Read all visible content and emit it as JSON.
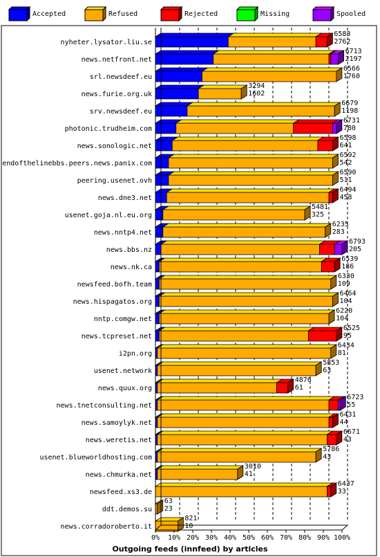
{
  "chart_data": {
    "type": "bar",
    "orientation": "horizontal",
    "stacked": true,
    "percent_scale": true,
    "title": "Outgoing feeds (innfeed) by articles",
    "legend_position": "top",
    "xlim": [
      0,
      100
    ],
    "x_ticks": [
      "0%",
      "10%",
      "20%",
      "30%",
      "40%",
      "50%",
      "60%",
      "70%",
      "80%",
      "90%",
      "100%"
    ],
    "grid": true,
    "series": [
      {
        "name": "Accepted",
        "color": "#0000ff"
      },
      {
        "name": "Refused",
        "color": "#ffaa00"
      },
      {
        "name": "Rejected",
        "color": "#ff0000"
      },
      {
        "name": "Missing",
        "color": "#00ff00"
      },
      {
        "name": "Spooled",
        "color": "#9900ff"
      }
    ],
    "rows": [
      {
        "label": "nyheter.lysator.liu.se",
        "total": "6583",
        "accepted": "2762",
        "seg": [
          39,
          47,
          6,
          0,
          0
        ]
      },
      {
        "label": "news.netfront.net",
        "total": "6713",
        "accepted": "2197",
        "seg": [
          31,
          62,
          1,
          0,
          4
        ]
      },
      {
        "label": "srl.newsdeef.eu",
        "total": "6566",
        "accepted": "1760",
        "seg": [
          25,
          72,
          0,
          0,
          0
        ]
      },
      {
        "label": "news.furie.org.uk",
        "total": "3294",
        "accepted": "1602",
        "seg": [
          23,
          23,
          0,
          0,
          0
        ]
      },
      {
        "label": "srv.newsdeef.eu",
        "total": "6679",
        "accepted": "1198",
        "seg": [
          17,
          79,
          0,
          0,
          0
        ]
      },
      {
        "label": "photonic.trudheim.com",
        "total": "6731",
        "accepted": "780",
        "seg": [
          11,
          63,
          21,
          0,
          2
        ]
      },
      {
        "label": "news.sonologic.net",
        "total": "6598",
        "accepted": "641",
        "seg": [
          9,
          78,
          8,
          0,
          0
        ]
      },
      {
        "label": "endofthelinebbs.peers.news.panix.com",
        "total": "6592",
        "accepted": "542",
        "seg": [
          7,
          88,
          0,
          0,
          0
        ]
      },
      {
        "label": "peering.usenet.ovh",
        "total": "6590",
        "accepted": "511",
        "seg": [
          7,
          88,
          0,
          0,
          0
        ]
      },
      {
        "label": "news.dne3.net",
        "total": "6494",
        "accepted": "458",
        "seg": [
          6,
          87,
          2,
          0,
          0
        ]
      },
      {
        "label": "usenet.goja.nl.eu.org",
        "total": "5481",
        "accepted": "325",
        "seg": [
          4,
          76,
          0,
          0,
          0
        ]
      },
      {
        "label": "news.nntp4.net",
        "total": "6235",
        "accepted": "283",
        "seg": [
          4,
          87,
          0,
          0,
          0
        ]
      },
      {
        "label": "news.bbs.nz",
        "total": "6793",
        "accepted": "205",
        "seg": [
          3,
          85,
          8,
          0,
          4
        ]
      },
      {
        "label": "news.nk.ca",
        "total": "6539",
        "accepted": "186",
        "seg": [
          2,
          87,
          7,
          0,
          0
        ]
      },
      {
        "label": "newsfeed.bofh.team",
        "total": "6330",
        "accepted": "109",
        "seg": [
          2,
          92,
          0,
          0,
          0
        ]
      },
      {
        "label": "news.hispagatos.org",
        "total": "6464",
        "accepted": "104",
        "seg": [
          2,
          93,
          0,
          0,
          0
        ]
      },
      {
        "label": "nntp.comgw.net",
        "total": "6220",
        "accepted": "104",
        "seg": [
          2,
          91,
          0,
          0,
          0
        ]
      },
      {
        "label": "news.tcpreset.net",
        "total": "6525",
        "accepted": "95",
        "seg": [
          2,
          80,
          15,
          0,
          0
        ]
      },
      {
        "label": "i2pn.org",
        "total": "6434",
        "accepted": "81",
        "seg": [
          1,
          93,
          0,
          0,
          0
        ]
      },
      {
        "label": "usenet.network",
        "total": "5853",
        "accepted": "63",
        "seg": [
          1,
          85,
          0,
          0,
          0
        ]
      },
      {
        "label": "news.quux.org",
        "total": "4876",
        "accepted": "61",
        "seg": [
          1,
          64,
          6,
          0,
          0
        ]
      },
      {
        "label": "news.tnetconsulting.net",
        "total": "6723",
        "accepted": "55",
        "seg": [
          1,
          92,
          5,
          0,
          1
        ]
      },
      {
        "label": "news.samoylyk.net",
        "total": "6431",
        "accepted": "44",
        "seg": [
          1,
          92,
          2,
          0,
          0
        ]
      },
      {
        "label": "news.weretis.net",
        "total": "6671",
        "accepted": "43",
        "seg": [
          1,
          91,
          5,
          0,
          0
        ]
      },
      {
        "label": "usenet.blueworldhosting.com",
        "total": "5786",
        "accepted": "43",
        "seg": [
          1,
          85,
          0,
          0,
          0
        ]
      },
      {
        "label": "news.chmurka.net",
        "total": "3010",
        "accepted": "41",
        "seg": [
          1,
          43,
          0,
          0,
          0
        ]
      },
      {
        "label": "newsfeed.xs3.de",
        "total": "6437",
        "accepted": "33",
        "seg": [
          0,
          92,
          2,
          0,
          0
        ]
      },
      {
        "label": "ddt.demos.su",
        "total": "63",
        "accepted": "23",
        "seg": [
          0,
          1,
          0,
          0,
          0
        ]
      },
      {
        "label": "news.corradoroberto.it",
        "total": "821",
        "accepted": "10",
        "seg": [
          0,
          12,
          0,
          0,
          0
        ]
      }
    ]
  }
}
